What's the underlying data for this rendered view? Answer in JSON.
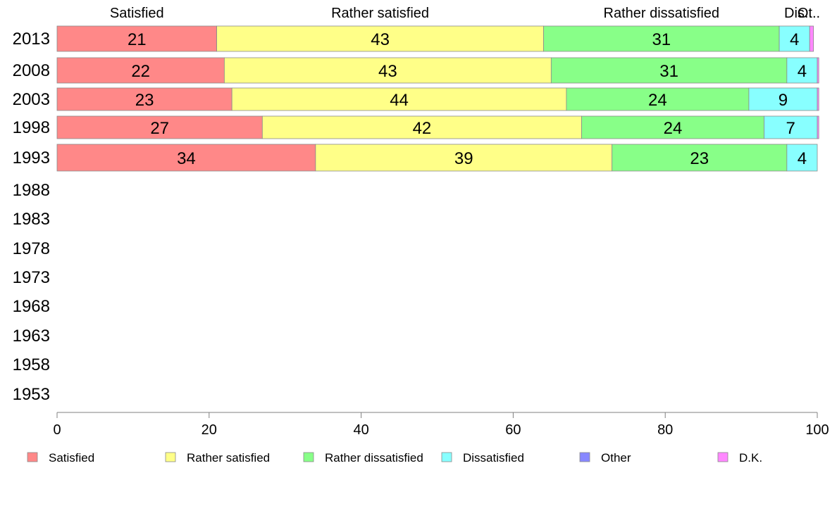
{
  "chart_data": {
    "type": "bar",
    "orientation": "horizontal",
    "stacked": true,
    "title": "",
    "xlabel": "",
    "ylabel": "",
    "xlim": [
      0,
      100
    ],
    "xticks": [
      0,
      20,
      40,
      60,
      80,
      100
    ],
    "grid": false,
    "legend_position": "bottom",
    "categories": [
      "2013",
      "2008",
      "2003",
      "1998",
      "1993",
      "1988",
      "1983",
      "1978",
      "1973",
      "1968",
      "1963",
      "1958",
      "1953"
    ],
    "series": [
      {
        "name": "Satisfied",
        "color": "#ff8888",
        "values": [
          21,
          22,
          23,
          27,
          34,
          null,
          null,
          null,
          null,
          null,
          null,
          null,
          null
        ],
        "labels": [
          "21",
          "22",
          "23",
          "27",
          "34",
          null,
          null,
          null,
          null,
          null,
          null,
          null,
          null
        ]
      },
      {
        "name": "Rather satisfied",
        "color": "#ffff88",
        "values": [
          43,
          43,
          44,
          42,
          39,
          null,
          null,
          null,
          null,
          null,
          null,
          null,
          null
        ],
        "labels": [
          "43",
          "43",
          "44",
          "42",
          "39",
          null,
          null,
          null,
          null,
          null,
          null,
          null,
          null
        ]
      },
      {
        "name": "Rather dissatisfied",
        "color": "#88ff88",
        "values": [
          31,
          31,
          24,
          24,
          23,
          null,
          null,
          null,
          null,
          null,
          null,
          null,
          null
        ],
        "labels": [
          "31",
          "31",
          "24",
          "24",
          "23",
          null,
          null,
          null,
          null,
          null,
          null,
          null,
          null
        ]
      },
      {
        "name": "Dissatisfied",
        "color": "#88ffff",
        "values": [
          4,
          4,
          9,
          7,
          4,
          null,
          null,
          null,
          null,
          null,
          null,
          null,
          null
        ],
        "labels": [
          "4",
          "4",
          "9",
          "7",
          "4",
          null,
          null,
          null,
          null,
          null,
          null,
          null,
          null
        ]
      },
      {
        "name": "Other",
        "color": "#8888ff",
        "values": [
          0,
          0,
          0,
          0,
          0,
          null,
          null,
          null,
          null,
          null,
          null,
          null,
          null
        ],
        "labels": [
          null,
          null,
          null,
          null,
          null,
          null,
          null,
          null,
          null,
          null,
          null,
          null,
          null
        ]
      },
      {
        "name": "D.K.",
        "color": "#ff88ff",
        "values": [
          0.5,
          0.2,
          0.2,
          0.2,
          0,
          null,
          null,
          null,
          null,
          null,
          null,
          null,
          null
        ],
        "labels": [
          null,
          null,
          null,
          null,
          null,
          null,
          null,
          null,
          null,
          null,
          null,
          null,
          null
        ]
      }
    ],
    "top_labels": [
      "Satisfied",
      "Rather satisfied",
      "Rather dissatisfied",
      "Dis..",
      "Ot.."
    ]
  }
}
